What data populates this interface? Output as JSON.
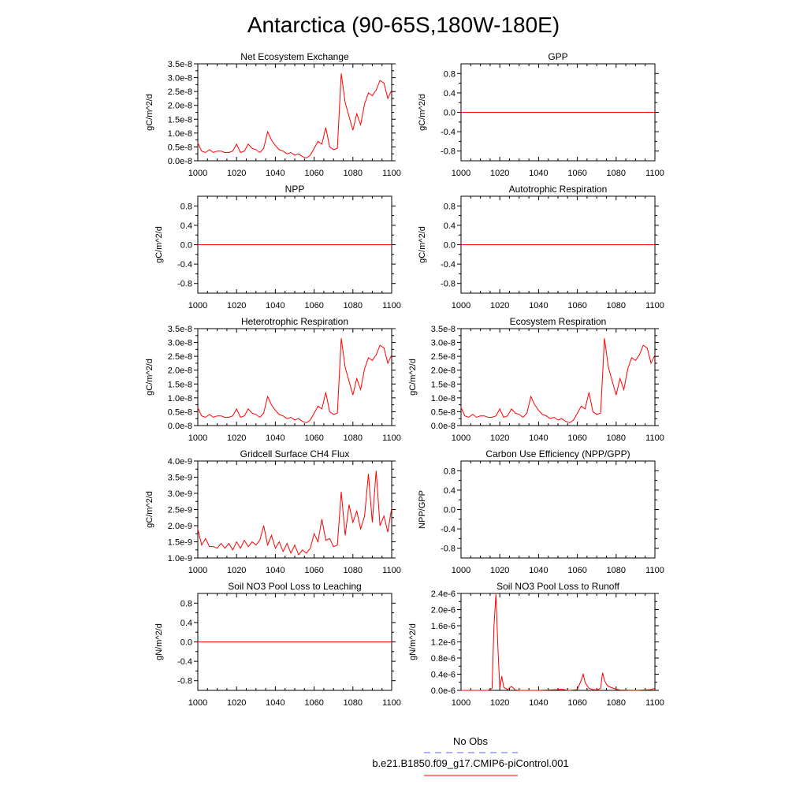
{
  "title": "Antarctica (90-65S,180W-180E)",
  "colors": {
    "model_line": "#ff0000",
    "obs_line": "#6060ff",
    "axis": "#000000"
  },
  "legend": {
    "obs_label": "No Obs",
    "model_label": "b.e21.B1850.f09_g17.CMIP6-piControl.001"
  },
  "chart_data": [
    {
      "type": "line",
      "title": "Net Ecosystem Exchange",
      "ylabel": "gC/m^2/d",
      "xlim": [
        1000,
        1100
      ],
      "xticks": [
        1000,
        1020,
        1040,
        1060,
        1080,
        1100
      ],
      "ylim": [
        0,
        3.5e-08
      ],
      "yticks": [
        0,
        5e-09,
        1e-08,
        1.5e-08,
        2e-08,
        2.5e-08,
        3e-08,
        3.5e-08
      ],
      "yticklabels": [
        "0.0e-8",
        "0.5e-8",
        "1.0e-8",
        "1.5e-8",
        "2.0e-8",
        "2.5e-8",
        "3.0e-8",
        "3.5e-8"
      ],
      "series": [
        {
          "x": [
            1000,
            1002,
            1004,
            1006,
            1008,
            1010,
            1012,
            1014,
            1016,
            1018,
            1020,
            1022,
            1024,
            1026,
            1028,
            1030,
            1032,
            1034,
            1036,
            1038,
            1040,
            1042,
            1044,
            1046,
            1048,
            1050,
            1052,
            1054,
            1056,
            1058,
            1060,
            1062,
            1064,
            1066,
            1068,
            1070,
            1072,
            1074,
            1076,
            1078,
            1080,
            1082,
            1084,
            1086,
            1088,
            1090,
            1092,
            1094,
            1096,
            1098,
            1100
          ],
          "y": [
            6.5e-09,
            3.5e-09,
            3e-09,
            4e-09,
            3e-09,
            3.5e-09,
            3.5e-09,
            3e-09,
            3e-09,
            3.5e-09,
            6e-09,
            3e-09,
            3.5e-09,
            6e-09,
            4.5e-09,
            4e-09,
            3e-09,
            4.5e-09,
            1.05e-08,
            7.5e-09,
            5.5e-09,
            4e-09,
            3.5e-09,
            2.5e-09,
            3e-09,
            2e-09,
            2.5e-09,
            1.5e-09,
            1e-09,
            2e-09,
            4.5e-09,
            7e-09,
            6e-09,
            1.2e-08,
            5e-09,
            4e-09,
            4.5e-09,
            3.15e-08,
            2.1e-08,
            1.6e-08,
            1.1e-08,
            1.7e-08,
            1.3e-08,
            2.05e-08,
            2.45e-08,
            2.35e-08,
            2.55e-08,
            2.9e-08,
            2.8e-08,
            2.25e-08,
            2.55e-08
          ]
        }
      ]
    },
    {
      "type": "line",
      "title": "GPP",
      "ylabel": "gC/m^2/d",
      "xlim": [
        1000,
        1100
      ],
      "xticks": [
        1000,
        1020,
        1040,
        1060,
        1080,
        1100
      ],
      "ylim": [
        -1,
        1
      ],
      "yticks": [
        -0.8,
        -0.4,
        0,
        0.4,
        0.8
      ],
      "yticklabels": [
        "-0.8",
        "-0.4",
        "0.0",
        "0.4",
        "0.8"
      ],
      "series": [
        {
          "x": [
            1000,
            1100
          ],
          "y": [
            0,
            0
          ]
        }
      ]
    },
    {
      "type": "line",
      "title": "NPP",
      "ylabel": "gC/m^2/d",
      "xlim": [
        1000,
        1100
      ],
      "xticks": [
        1000,
        1020,
        1040,
        1060,
        1080,
        1100
      ],
      "ylim": [
        -1,
        1
      ],
      "yticks": [
        -0.8,
        -0.4,
        0,
        0.4,
        0.8
      ],
      "yticklabels": [
        "-0.8",
        "-0.4",
        "0.0",
        "0.4",
        "0.8"
      ],
      "series": [
        {
          "x": [
            1000,
            1100
          ],
          "y": [
            0,
            0
          ]
        }
      ]
    },
    {
      "type": "line",
      "title": "Autotrophic Respiration",
      "ylabel": "gC/m^2/d",
      "xlim": [
        1000,
        1100
      ],
      "xticks": [
        1000,
        1020,
        1040,
        1060,
        1080,
        1100
      ],
      "ylim": [
        -1,
        1
      ],
      "yticks": [
        -0.8,
        -0.4,
        0,
        0.4,
        0.8
      ],
      "yticklabels": [
        "-0.8",
        "-0.4",
        "0.0",
        "0.4",
        "0.8"
      ],
      "series": [
        {
          "x": [
            1000,
            1100
          ],
          "y": [
            0,
            0
          ]
        }
      ]
    },
    {
      "type": "line",
      "title": "Heterotrophic Respiration",
      "ylabel": "gC/m^2/d",
      "xlim": [
        1000,
        1100
      ],
      "xticks": [
        1000,
        1020,
        1040,
        1060,
        1080,
        1100
      ],
      "ylim": [
        0,
        3.5e-08
      ],
      "yticks": [
        0,
        5e-09,
        1e-08,
        1.5e-08,
        2e-08,
        2.5e-08,
        3e-08,
        3.5e-08
      ],
      "yticklabels": [
        "0.0e-8",
        "0.5e-8",
        "1.0e-8",
        "1.5e-8",
        "2.0e-8",
        "2.5e-8",
        "3.0e-8",
        "3.5e-8"
      ],
      "series": [
        {
          "x": [
            1000,
            1002,
            1004,
            1006,
            1008,
            1010,
            1012,
            1014,
            1016,
            1018,
            1020,
            1022,
            1024,
            1026,
            1028,
            1030,
            1032,
            1034,
            1036,
            1038,
            1040,
            1042,
            1044,
            1046,
            1048,
            1050,
            1052,
            1054,
            1056,
            1058,
            1060,
            1062,
            1064,
            1066,
            1068,
            1070,
            1072,
            1074,
            1076,
            1078,
            1080,
            1082,
            1084,
            1086,
            1088,
            1090,
            1092,
            1094,
            1096,
            1098,
            1100
          ],
          "y": [
            6.5e-09,
            3.5e-09,
            3e-09,
            4e-09,
            3e-09,
            3.5e-09,
            3.5e-09,
            3e-09,
            3e-09,
            3.5e-09,
            6e-09,
            3e-09,
            3.5e-09,
            6e-09,
            4.5e-09,
            4e-09,
            3e-09,
            4.5e-09,
            1.05e-08,
            7.5e-09,
            5.5e-09,
            4e-09,
            3.5e-09,
            2.5e-09,
            3e-09,
            2e-09,
            2.5e-09,
            1.5e-09,
            1e-09,
            2e-09,
            4.5e-09,
            7e-09,
            6e-09,
            1.2e-08,
            5e-09,
            4e-09,
            4.5e-09,
            3.15e-08,
            2.1e-08,
            1.6e-08,
            1.1e-08,
            1.7e-08,
            1.3e-08,
            2.05e-08,
            2.45e-08,
            2.35e-08,
            2.55e-08,
            2.9e-08,
            2.8e-08,
            2.25e-08,
            2.55e-08
          ]
        }
      ]
    },
    {
      "type": "line",
      "title": "Ecosystem Respiration",
      "ylabel": "gC/m^2/d",
      "xlim": [
        1000,
        1100
      ],
      "xticks": [
        1000,
        1020,
        1040,
        1060,
        1080,
        1100
      ],
      "ylim": [
        0,
        3.5e-08
      ],
      "yticks": [
        0,
        5e-09,
        1e-08,
        1.5e-08,
        2e-08,
        2.5e-08,
        3e-08,
        3.5e-08
      ],
      "yticklabels": [
        "0.0e-8",
        "0.5e-8",
        "1.0e-8",
        "1.5e-8",
        "2.0e-8",
        "2.5e-8",
        "3.0e-8",
        "3.5e-8"
      ],
      "series": [
        {
          "x": [
            1000,
            1002,
            1004,
            1006,
            1008,
            1010,
            1012,
            1014,
            1016,
            1018,
            1020,
            1022,
            1024,
            1026,
            1028,
            1030,
            1032,
            1034,
            1036,
            1038,
            1040,
            1042,
            1044,
            1046,
            1048,
            1050,
            1052,
            1054,
            1056,
            1058,
            1060,
            1062,
            1064,
            1066,
            1068,
            1070,
            1072,
            1074,
            1076,
            1078,
            1080,
            1082,
            1084,
            1086,
            1088,
            1090,
            1092,
            1094,
            1096,
            1098,
            1100
          ],
          "y": [
            6.5e-09,
            3.5e-09,
            3e-09,
            4e-09,
            3e-09,
            3.5e-09,
            3.5e-09,
            3e-09,
            3e-09,
            3.5e-09,
            6e-09,
            3e-09,
            3.5e-09,
            6e-09,
            4.5e-09,
            4e-09,
            3e-09,
            4.5e-09,
            1.05e-08,
            7.5e-09,
            5.5e-09,
            4e-09,
            3.5e-09,
            2.5e-09,
            3e-09,
            2e-09,
            2.5e-09,
            1.5e-09,
            1e-09,
            2e-09,
            4.5e-09,
            7e-09,
            6e-09,
            1.2e-08,
            5e-09,
            4e-09,
            4.5e-09,
            3.15e-08,
            2.1e-08,
            1.6e-08,
            1.1e-08,
            1.7e-08,
            1.3e-08,
            2.05e-08,
            2.45e-08,
            2.35e-08,
            2.55e-08,
            2.9e-08,
            2.8e-08,
            2.25e-08,
            2.55e-08
          ]
        }
      ]
    },
    {
      "type": "line",
      "title": "Gridcell Surface CH4 Flux",
      "ylabel": "gC/m^2/d",
      "xlim": [
        1000,
        1100
      ],
      "xticks": [
        1000,
        1020,
        1040,
        1060,
        1080,
        1100
      ],
      "ylim": [
        1e-09,
        4e-09
      ],
      "yticks": [
        1e-09,
        1.5e-09,
        2e-09,
        2.5e-09,
        3e-09,
        3.5e-09,
        4e-09
      ],
      "yticklabels": [
        "1.0e-9",
        "1.5e-9",
        "2.0e-9",
        "2.5e-9",
        "3.0e-9",
        "3.5e-9",
        "4.0e-9"
      ],
      "series": [
        {
          "x": [
            1000,
            1002,
            1004,
            1006,
            1008,
            1010,
            1012,
            1014,
            1016,
            1018,
            1020,
            1022,
            1024,
            1026,
            1028,
            1030,
            1032,
            1034,
            1036,
            1038,
            1040,
            1042,
            1044,
            1046,
            1048,
            1050,
            1052,
            1054,
            1056,
            1058,
            1060,
            1062,
            1064,
            1066,
            1068,
            1070,
            1072,
            1074,
            1076,
            1078,
            1080,
            1082,
            1084,
            1086,
            1088,
            1090,
            1092,
            1094,
            1096,
            1098,
            1100
          ],
          "y": [
            1.9e-09,
            1.4e-09,
            1.6e-09,
            1.35e-09,
            1.35e-09,
            1.3e-09,
            1.45e-09,
            1.3e-09,
            1.45e-09,
            1.25e-09,
            1.5e-09,
            1.3e-09,
            1.55e-09,
            1.35e-09,
            1.5e-09,
            1.4e-09,
            1.55e-09,
            2e-09,
            1.4e-09,
            1.7e-09,
            1.3e-09,
            1.5e-09,
            1.2e-09,
            1.45e-09,
            1.15e-09,
            1.4e-09,
            1.1e-09,
            1.25e-09,
            1.15e-09,
            1.3e-09,
            1.75e-09,
            1.5e-09,
            2.2e-09,
            1.55e-09,
            1.6e-09,
            1.35e-09,
            1.4e-09,
            3.05e-09,
            1.7e-09,
            2.65e-09,
            2.1e-09,
            2.45e-09,
            1.9e-09,
            2.3e-09,
            3.6e-09,
            2.1e-09,
            3.7e-09,
            2e-09,
            2.3e-09,
            1.8e-09,
            2.55e-09
          ]
        }
      ]
    },
    {
      "type": "line",
      "title": "Carbon Use Efficiency (NPP/GPP)",
      "ylabel": "NPP/GPP",
      "xlim": [
        1000,
        1100
      ],
      "xticks": [
        1000,
        1020,
        1040,
        1060,
        1080,
        1100
      ],
      "ylim": [
        -1,
        1
      ],
      "yticks": [
        -0.8,
        -0.4,
        0,
        0.4,
        0.8
      ],
      "yticklabels": [
        "-0.8",
        "-0.4",
        "0.0",
        "0.4",
        "0.8"
      ],
      "series": []
    },
    {
      "type": "line",
      "title": "Soil NO3 Pool Loss to Leaching",
      "ylabel": "gN/m^2/d",
      "xlim": [
        1000,
        1100
      ],
      "xticks": [
        1000,
        1020,
        1040,
        1060,
        1080,
        1100
      ],
      "ylim": [
        -1,
        1
      ],
      "yticks": [
        -0.8,
        -0.4,
        0,
        0.4,
        0.8
      ],
      "yticklabels": [
        "-0.8",
        "-0.4",
        "0.0",
        "0.4",
        "0.8"
      ],
      "series": [
        {
          "x": [
            1000,
            1100
          ],
          "y": [
            0,
            0
          ]
        }
      ]
    },
    {
      "type": "line",
      "title": "Soil NO3 Pool Loss to Runoff",
      "ylabel": "gN/m^2/d",
      "xlim": [
        1000,
        1100
      ],
      "xticks": [
        1000,
        1020,
        1040,
        1060,
        1080,
        1100
      ],
      "ylim": [
        0,
        2.4e-06
      ],
      "yticks": [
        0,
        4e-07,
        8e-07,
        1.2e-06,
        1.6e-06,
        2e-06,
        2.4e-06
      ],
      "yticklabels": [
        "0.0e-6",
        "0.4e-6",
        "0.8e-6",
        "1.2e-6",
        "1.6e-6",
        "2.0e-6",
        "2.4e-6"
      ],
      "series": [
        {
          "x": [
            1000,
            1002,
            1004,
            1006,
            1008,
            1010,
            1012,
            1014,
            1016,
            1017,
            1018,
            1019,
            1020,
            1021,
            1022,
            1024,
            1026,
            1028,
            1030,
            1032,
            1040,
            1050,
            1052,
            1054,
            1056,
            1060,
            1062,
            1063,
            1064,
            1065,
            1066,
            1068,
            1070,
            1072,
            1073,
            1074,
            1075,
            1076,
            1078,
            1080,
            1082,
            1090,
            1098,
            1100
          ],
          "y": [
            0,
            0,
            0,
            0,
            0,
            0,
            0,
            0,
            5e-08,
            1.6e-06,
            2.38e-06,
            1.1e-06,
            5e-08,
            3.5e-07,
            8e-08,
            2e-08,
            1e-07,
            1e-08,
            0,
            0,
            0,
            2e-08,
            3e-08,
            1e-08,
            0,
            2e-08,
            2.5e-07,
            4e-07,
            2e-07,
            1.2e-07,
            5e-08,
            2e-08,
            1e-08,
            5e-08,
            4.4e-07,
            2.5e-07,
            1.5e-07,
            1e-07,
            6e-08,
            3e-08,
            1e-08,
            0,
            2e-08,
            5e-08
          ]
        }
      ]
    }
  ]
}
